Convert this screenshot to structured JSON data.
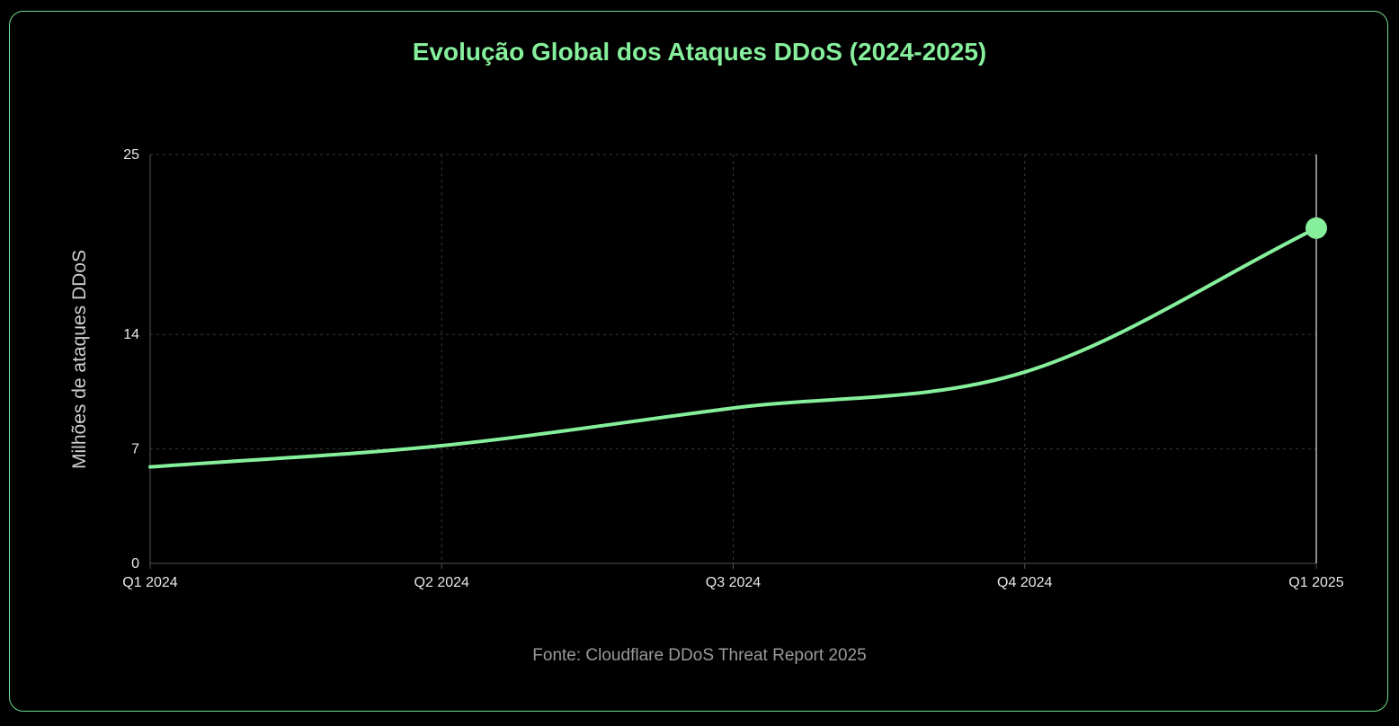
{
  "chart_data": {
    "type": "line",
    "title": "Evolução Global dos Ataques DDoS (2024-2025)",
    "xlabel": "",
    "ylabel": "Milhões de ataques DDoS",
    "categories": [
      "Q1 2024",
      "Q2 2024",
      "Q3 2024",
      "Q4 2024",
      "Q1 2025"
    ],
    "series": [
      {
        "values": [
          5.9,
          7.2,
          9.5,
          11.7,
          20.5
        ],
        "color": "#86ef9c"
      }
    ],
    "yticks": [
      0,
      7,
      14,
      25
    ],
    "ylim": [
      0,
      25
    ],
    "grid": true,
    "highlight_point_index": 4,
    "source": "Fonte: Cloudflare DDoS Threat Report 2025"
  },
  "colors": {
    "accent": "#86ef9c",
    "border": "#6fe08f",
    "background": "#000000",
    "grid": "#3a3a3a",
    "axis": "#555555"
  }
}
